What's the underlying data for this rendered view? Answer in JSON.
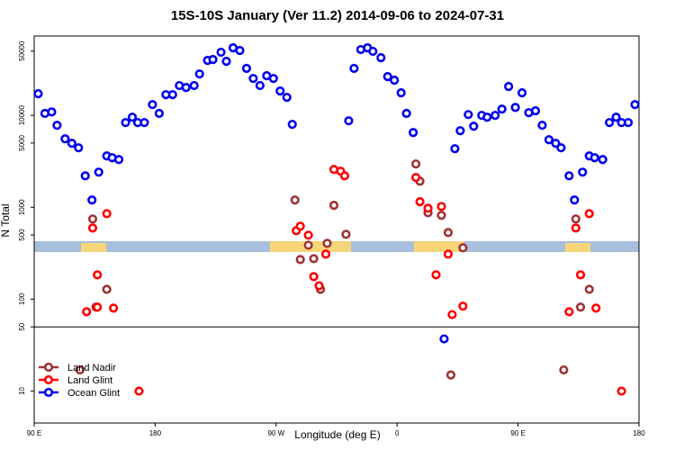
{
  "chart_data": {
    "type": "scatter",
    "title": "15S-10S January (Ver 11.2)   2014-09-06 to 2024-07-31",
    "xlabel": "Longitude (deg E)",
    "ylabel": "N Total",
    "xlim": [
      90,
      540
    ],
    "ylim": [
      4.5,
      73000
    ],
    "log_y": true,
    "legend": "lower left",
    "xticks": [
      {
        "value": 90,
        "label": "90 E"
      },
      180,
      {
        "value": 270,
        "label": "90 W"
      },
      {
        "value": 360,
        "label": "0"
      },
      {
        "value": 450,
        "label": "90 E"
      },
      {
        "value": 540,
        "label": "180"
      }
    ],
    "yticks": [
      10,
      50,
      100,
      500,
      1000,
      5000,
      10000,
      50000
    ],
    "hline": 50,
    "series": [
      {
        "name": "Land Nadir",
        "color": "#a03232",
        "x": [
          124,
          133.5,
          136,
          144,
          284,
          288,
          294,
          298,
          303,
          308,
          313,
          322,
          374,
          377,
          383,
          393,
          398,
          400,
          409,
          484,
          493,
          496.5,
          503
        ],
        "values": [
          17,
          746,
          82,
          128,
          1200,
          270,
          387,
          276,
          128,
          405,
          1050,
          508,
          2960,
          1920,
          873,
          817,
          531,
          15,
          362,
          17,
          746,
          82,
          128
        ]
      },
      {
        "name": "Land Glint",
        "color": "#ff0000",
        "x": [
          129,
          133.5,
          137,
          137,
          144,
          149,
          168,
          285,
          288,
          294,
          298,
          302,
          307,
          313,
          318,
          321,
          374,
          377,
          383,
          389,
          393,
          398,
          401,
          409,
          488,
          493,
          496.5,
          503,
          508,
          527
        ],
        "values": [
          73,
          595,
          184,
          82,
          853,
          80,
          10,
          556,
          622,
          497,
          176,
          140,
          309,
          2580,
          2470,
          2200,
          2110,
          1150,
          977,
          184,
          1020,
          309,
          68,
          84,
          73,
          595,
          184,
          853,
          80,
          10
        ]
      },
      {
        "name": "Ocean Glint",
        "color": "#0000ee",
        "x": [
          93,
          98,
          103,
          107,
          113,
          118,
          123,
          128,
          133,
          138,
          144,
          148,
          153,
          158,
          163,
          167,
          172,
          178,
          183,
          188,
          193,
          198,
          203,
          209,
          213,
          219,
          223,
          229,
          233,
          238,
          243,
          248,
          253,
          258,
          263,
          268,
          273,
          278,
          282,
          324,
          328,
          333,
          338,
          342,
          348,
          353,
          358,
          363,
          367,
          372,
          395,
          403,
          407,
          413,
          417,
          423,
          427,
          433,
          438,
          443,
          448,
          453,
          458,
          463,
          468,
          473,
          478,
          482,
          488,
          492,
          498,
          503,
          507,
          513,
          518,
          523,
          527,
          532,
          537
        ],
        "values": [
          17200,
          10500,
          10900,
          7800,
          5560,
          4970,
          4440,
          2200,
          1200,
          2410,
          3620,
          3460,
          3310,
          8350,
          9550,
          8350,
          8350,
          13100,
          10500,
          16800,
          16800,
          21100,
          20100,
          21100,
          28200,
          39600,
          40500,
          48600,
          38700,
          54300,
          50800,
          32400,
          25200,
          21100,
          27000,
          25200,
          18400,
          15700,
          7980,
          8730,
          32400,
          52000,
          54300,
          49700,
          42400,
          26400,
          24100,
          17600,
          10500,
          6510,
          37,
          4340,
          6810,
          10200,
          7620,
          10000,
          9550,
          10000,
          11700,
          20600,
          12200,
          17600,
          10700,
          11200,
          7800,
          5430,
          4970,
          4440,
          2200,
          1200,
          2410,
          3620,
          3460,
          3310,
          8350,
          9550,
          8350,
          8350,
          13100
        ]
      }
    ]
  }
}
